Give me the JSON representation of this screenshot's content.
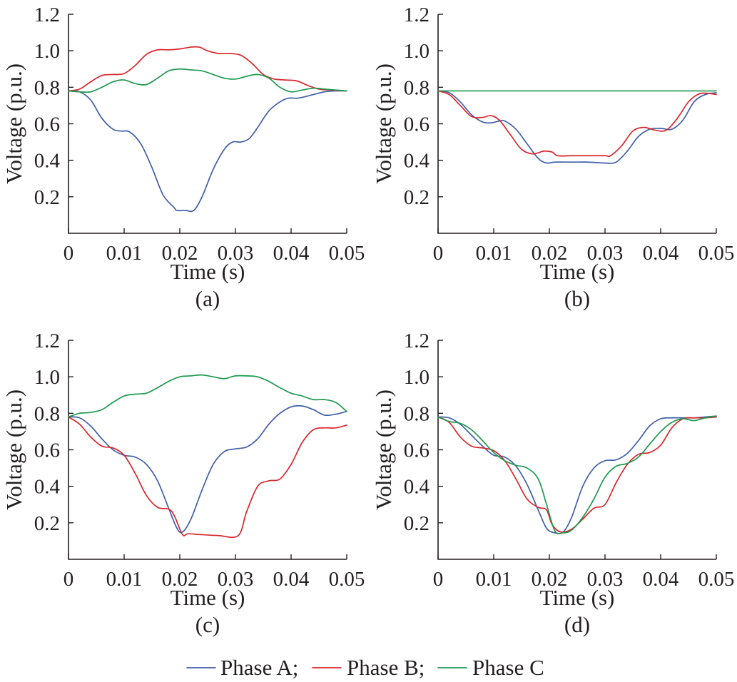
{
  "chart_data": [
    {
      "type": "line",
      "panel_label": "(a)",
      "xlabel": "Time (s)",
      "ylabel": "Voltage (p.u.)",
      "xlim": [
        0,
        0.05
      ],
      "ylim": [
        0,
        1.2
      ],
      "xticks": [
        0,
        0.01,
        0.02,
        0.03,
        0.04,
        0.05
      ],
      "xtick_labels": [
        "0",
        "0.01",
        "0.02",
        "0.03",
        "0.04",
        "0.05"
      ],
      "yticks": [
        0.2,
        0.4,
        0.6,
        0.8,
        1.0,
        1.2
      ],
      "ytick_labels": [
        "0.2",
        "0.4",
        "0.6",
        "0.8",
        "1.0",
        "1.2"
      ],
      "series": [
        {
          "name": "Phase A",
          "color": "#3f5fa8",
          "x": [
            0,
            0.002,
            0.004,
            0.006,
            0.008,
            0.0095,
            0.011,
            0.013,
            0.015,
            0.017,
            0.019,
            0.0195,
            0.021,
            0.0225,
            0.024,
            0.026,
            0.028,
            0.0295,
            0.031,
            0.0325,
            0.034,
            0.036,
            0.038,
            0.0395,
            0.041,
            0.042,
            0.044,
            0.046,
            0.048,
            0.05
          ],
          "y": [
            0.78,
            0.775,
            0.73,
            0.63,
            0.57,
            0.56,
            0.555,
            0.49,
            0.36,
            0.21,
            0.14,
            0.125,
            0.125,
            0.125,
            0.2,
            0.35,
            0.46,
            0.5,
            0.5,
            0.52,
            0.58,
            0.67,
            0.72,
            0.74,
            0.74,
            0.745,
            0.76,
            0.775,
            0.78,
            0.78
          ]
        },
        {
          "name": "Phase B",
          "color": "#d9262b",
          "x": [
            0,
            0.002,
            0.004,
            0.006,
            0.008,
            0.01,
            0.012,
            0.014,
            0.016,
            0.018,
            0.02,
            0.022,
            0.0235,
            0.025,
            0.027,
            0.029,
            0.031,
            0.033,
            0.035,
            0.037,
            0.039,
            0.041,
            0.043,
            0.045,
            0.047,
            0.05
          ],
          "y": [
            0.78,
            0.79,
            0.83,
            0.865,
            0.87,
            0.875,
            0.92,
            0.98,
            1.005,
            1.005,
            1.01,
            1.02,
            1.02,
            1.0,
            0.985,
            0.985,
            0.975,
            0.93,
            0.87,
            0.845,
            0.84,
            0.835,
            0.81,
            0.79,
            0.785,
            0.78
          ]
        },
        {
          "name": "Phase C",
          "color": "#1f9950",
          "x": [
            0,
            0.002,
            0.004,
            0.006,
            0.008,
            0.01,
            0.012,
            0.014,
            0.016,
            0.018,
            0.02,
            0.022,
            0.024,
            0.026,
            0.028,
            0.03,
            0.032,
            0.034,
            0.036,
            0.038,
            0.04,
            0.042,
            0.044,
            0.046,
            0.048,
            0.05
          ],
          "y": [
            0.78,
            0.775,
            0.775,
            0.8,
            0.83,
            0.84,
            0.82,
            0.815,
            0.85,
            0.89,
            0.9,
            0.895,
            0.89,
            0.87,
            0.85,
            0.845,
            0.86,
            0.87,
            0.85,
            0.8,
            0.775,
            0.785,
            0.795,
            0.79,
            0.785,
            0.78
          ]
        }
      ]
    },
    {
      "type": "line",
      "panel_label": "(b)",
      "xlabel": "Time (s)",
      "ylabel": "Voltage (p.u.)",
      "xlim": [
        0,
        0.05
      ],
      "ylim": [
        0,
        1.2
      ],
      "xticks": [
        0,
        0.01,
        0.02,
        0.03,
        0.04,
        0.05
      ],
      "xtick_labels": [
        "0",
        "0.01",
        "0.02",
        "0.03",
        "0.04",
        "0.05"
      ],
      "yticks": [
        0.2,
        0.4,
        0.6,
        0.8,
        1.0,
        1.2
      ],
      "ytick_labels": [
        "0.2",
        "0.4",
        "0.6",
        "0.8",
        "1.0",
        "1.2"
      ],
      "series": [
        {
          "name": "Phase A",
          "color": "#3f5fa8",
          "x": [
            0,
            0.002,
            0.004,
            0.006,
            0.008,
            0.0095,
            0.011,
            0.012,
            0.014,
            0.016,
            0.018,
            0.0195,
            0.021,
            0.024,
            0.027,
            0.03,
            0.032,
            0.034,
            0.036,
            0.038,
            0.04,
            0.042,
            0.044,
            0.046,
            0.048,
            0.05
          ],
          "y": [
            0.78,
            0.77,
            0.72,
            0.65,
            0.61,
            0.605,
            0.615,
            0.615,
            0.57,
            0.49,
            0.41,
            0.385,
            0.39,
            0.39,
            0.39,
            0.385,
            0.39,
            0.45,
            0.53,
            0.57,
            0.575,
            0.57,
            0.62,
            0.72,
            0.76,
            0.77
          ]
        },
        {
          "name": "Phase B",
          "color": "#d9262b",
          "x": [
            0,
            0.002,
            0.004,
            0.006,
            0.008,
            0.0095,
            0.011,
            0.013,
            0.015,
            0.017,
            0.019,
            0.0205,
            0.0215,
            0.024,
            0.027,
            0.03,
            0.031,
            0.033,
            0.035,
            0.037,
            0.039,
            0.041,
            0.043,
            0.045,
            0.047,
            0.049,
            0.05
          ],
          "y": [
            0.78,
            0.76,
            0.7,
            0.64,
            0.635,
            0.645,
            0.62,
            0.54,
            0.46,
            0.435,
            0.45,
            0.445,
            0.425,
            0.425,
            0.425,
            0.425,
            0.425,
            0.48,
            0.56,
            0.58,
            0.565,
            0.565,
            0.63,
            0.72,
            0.765,
            0.765,
            0.76
          ]
        },
        {
          "name": "Phase C",
          "color": "#1f9950",
          "x": [
            0,
            0.05
          ],
          "y": [
            0.78,
            0.78
          ]
        }
      ]
    },
    {
      "type": "line",
      "panel_label": "(c)",
      "xlabel": "Time (s)",
      "ylabel": "Voltage (p.u.)",
      "xlim": [
        0,
        0.05
      ],
      "ylim": [
        0,
        1.2
      ],
      "xticks": [
        0,
        0.01,
        0.02,
        0.03,
        0.04,
        0.05
      ],
      "xtick_labels": [
        "0",
        "0.01",
        "0.02",
        "0.03",
        "0.04",
        "0.05"
      ],
      "yticks": [
        0.2,
        0.4,
        0.6,
        0.8,
        1.0,
        1.2
      ],
      "ytick_labels": [
        "0.2",
        "0.4",
        "0.6",
        "0.8",
        "1.0",
        "1.2"
      ],
      "series": [
        {
          "name": "Phase A",
          "color": "#3f5fa8",
          "x": [
            0,
            0.002,
            0.004,
            0.006,
            0.008,
            0.01,
            0.012,
            0.014,
            0.016,
            0.018,
            0.0195,
            0.0205,
            0.022,
            0.024,
            0.026,
            0.028,
            0.03,
            0.032,
            0.034,
            0.036,
            0.038,
            0.04,
            0.042,
            0.044,
            0.046,
            0.048,
            0.05
          ],
          "y": [
            0.78,
            0.775,
            0.73,
            0.66,
            0.6,
            0.57,
            0.56,
            0.52,
            0.43,
            0.28,
            0.17,
            0.15,
            0.22,
            0.38,
            0.52,
            0.59,
            0.605,
            0.615,
            0.66,
            0.74,
            0.8,
            0.835,
            0.84,
            0.82,
            0.79,
            0.795,
            0.81
          ]
        },
        {
          "name": "Phase B",
          "color": "#d9262b",
          "x": [
            0,
            0.002,
            0.004,
            0.006,
            0.008,
            0.01,
            0.012,
            0.014,
            0.016,
            0.018,
            0.019,
            0.0205,
            0.0215,
            0.024,
            0.027,
            0.0305,
            0.032,
            0.034,
            0.036,
            0.038,
            0.04,
            0.042,
            0.044,
            0.046,
            0.048,
            0.05
          ],
          "y": [
            0.78,
            0.74,
            0.67,
            0.62,
            0.61,
            0.57,
            0.47,
            0.35,
            0.285,
            0.275,
            0.24,
            0.135,
            0.14,
            0.135,
            0.13,
            0.13,
            0.26,
            0.4,
            0.43,
            0.44,
            0.52,
            0.64,
            0.71,
            0.72,
            0.72,
            0.735
          ]
        },
        {
          "name": "Phase C",
          "color": "#1f9950",
          "x": [
            0,
            0.002,
            0.004,
            0.006,
            0.008,
            0.01,
            0.012,
            0.014,
            0.016,
            0.018,
            0.02,
            0.022,
            0.024,
            0.026,
            0.028,
            0.03,
            0.032,
            0.034,
            0.036,
            0.038,
            0.04,
            0.042,
            0.044,
            0.046,
            0.048,
            0.05
          ],
          "y": [
            0.78,
            0.8,
            0.805,
            0.82,
            0.86,
            0.895,
            0.905,
            0.91,
            0.94,
            0.975,
            1.0,
            1.005,
            1.01,
            1.0,
            0.99,
            1.005,
            1.005,
            1.0,
            0.975,
            0.94,
            0.91,
            0.895,
            0.875,
            0.875,
            0.86,
            0.81
          ]
        }
      ]
    },
    {
      "type": "line",
      "panel_label": "(d)",
      "xlabel": "Time (s)",
      "ylabel": "Voltage (p.u.)",
      "xlim": [
        0,
        0.05
      ],
      "ylim": [
        0,
        1.2
      ],
      "xticks": [
        0,
        0.01,
        0.02,
        0.03,
        0.04,
        0.05
      ],
      "xtick_labels": [
        "0",
        "0.01",
        "0.02",
        "0.03",
        "0.04",
        "0.05"
      ],
      "yticks": [
        0.2,
        0.4,
        0.6,
        0.8,
        1.0,
        1.2
      ],
      "ytick_labels": [
        "0.2",
        "0.4",
        "0.6",
        "0.8",
        "1.0",
        "1.2"
      ],
      "series": [
        {
          "name": "Phase A",
          "color": "#3f5fa8",
          "x": [
            0,
            0.002,
            0.004,
            0.006,
            0.008,
            0.01,
            0.012,
            0.014,
            0.016,
            0.018,
            0.0195,
            0.021,
            0.0225,
            0.024,
            0.026,
            0.028,
            0.03,
            0.032,
            0.034,
            0.036,
            0.038,
            0.04,
            0.042,
            0.044,
            0.046,
            0.048,
            0.05
          ],
          "y": [
            0.78,
            0.775,
            0.74,
            0.68,
            0.62,
            0.57,
            0.56,
            0.51,
            0.41,
            0.27,
            0.17,
            0.145,
            0.15,
            0.23,
            0.4,
            0.5,
            0.54,
            0.545,
            0.58,
            0.65,
            0.73,
            0.77,
            0.775,
            0.775,
            0.775,
            0.78,
            0.785
          ]
        },
        {
          "name": "Phase B",
          "color": "#d9262b",
          "x": [
            0,
            0.002,
            0.004,
            0.006,
            0.008,
            0.01,
            0.012,
            0.014,
            0.016,
            0.018,
            0.0195,
            0.0205,
            0.022,
            0.024,
            0.026,
            0.028,
            0.03,
            0.032,
            0.034,
            0.036,
            0.038,
            0.04,
            0.042,
            0.044,
            0.046,
            0.048,
            0.05
          ],
          "y": [
            0.78,
            0.75,
            0.67,
            0.62,
            0.61,
            0.595,
            0.54,
            0.44,
            0.33,
            0.285,
            0.27,
            0.19,
            0.15,
            0.165,
            0.22,
            0.28,
            0.3,
            0.42,
            0.52,
            0.575,
            0.585,
            0.625,
            0.72,
            0.77,
            0.775,
            0.775,
            0.78
          ]
        },
        {
          "name": "Phase C",
          "color": "#1f9950",
          "x": [
            0,
            0.002,
            0.004,
            0.006,
            0.008,
            0.01,
            0.012,
            0.014,
            0.016,
            0.018,
            0.0195,
            0.021,
            0.0225,
            0.024,
            0.026,
            0.028,
            0.03,
            0.032,
            0.034,
            0.036,
            0.038,
            0.04,
            0.042,
            0.044,
            0.046,
            0.048,
            0.05
          ],
          "y": [
            0.78,
            0.755,
            0.745,
            0.71,
            0.65,
            0.585,
            0.54,
            0.515,
            0.5,
            0.44,
            0.3,
            0.155,
            0.145,
            0.16,
            0.23,
            0.33,
            0.45,
            0.51,
            0.525,
            0.56,
            0.63,
            0.7,
            0.75,
            0.77,
            0.76,
            0.775,
            0.785
          ]
        }
      ]
    }
  ],
  "legend": {
    "items": [
      {
        "label": "Phase A;",
        "color": "#3f5fa8"
      },
      {
        "label": "Phase B;",
        "color": "#d9262b"
      },
      {
        "label": "Phase C",
        "color": "#1f9950"
      }
    ]
  }
}
